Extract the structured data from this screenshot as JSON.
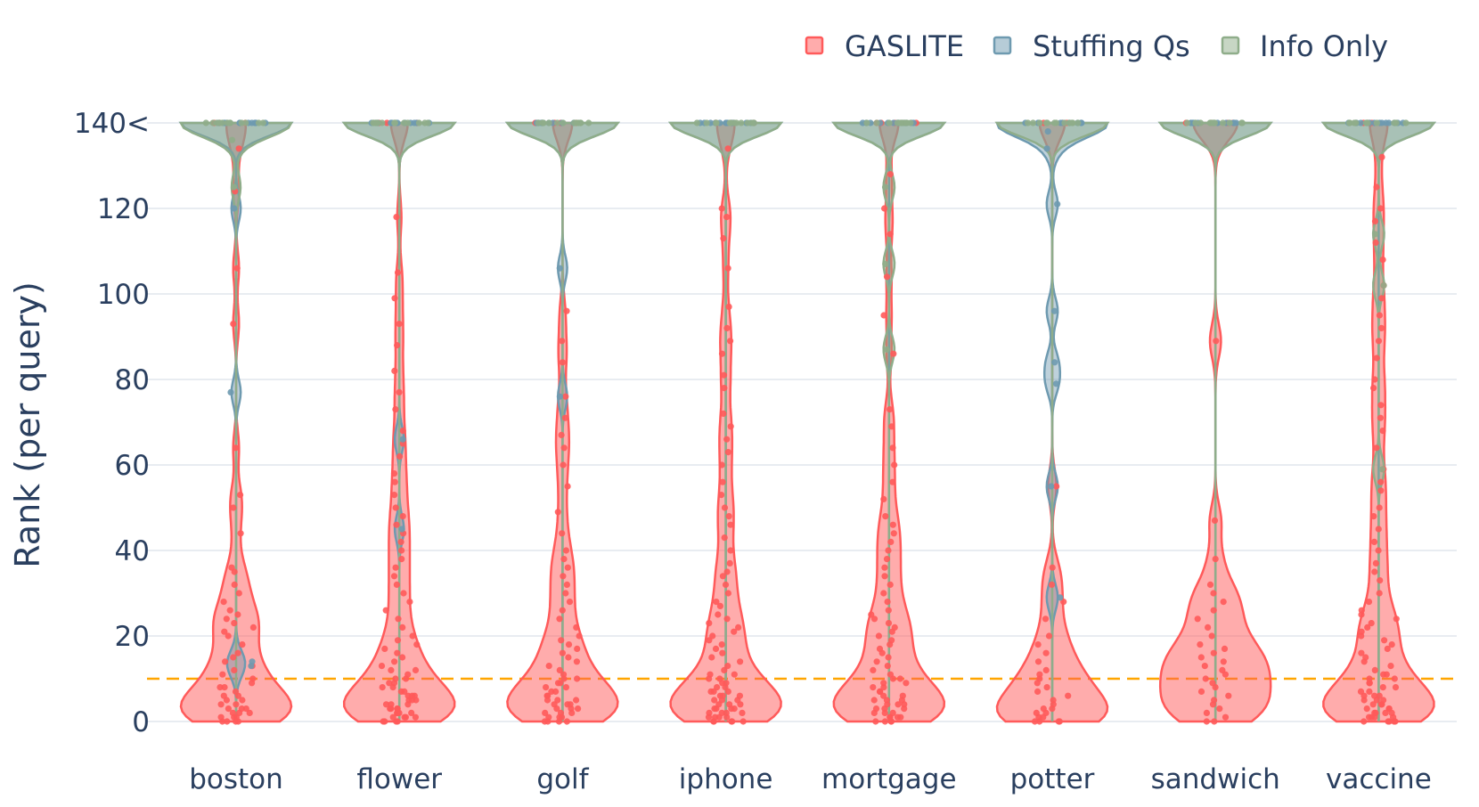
{
  "chart_data": {
    "type": "violin",
    "title": "",
    "xlabel": "",
    "ylabel": "Rank (per query)",
    "ylim": [
      0,
      140
    ],
    "yticks": [
      0,
      20,
      40,
      60,
      80,
      100,
      120,
      140
    ],
    "ytick_labels": [
      "0",
      "20",
      "40",
      "60",
      "80",
      "100",
      "120",
      "140<"
    ],
    "categories": [
      "boston",
      "flower",
      "golf",
      "iphone",
      "mortgage",
      "potter",
      "sandwich",
      "vaccine"
    ],
    "grid": true,
    "reference_line": {
      "y": 10,
      "color": "#ffa500",
      "style": "dashed"
    },
    "legend": {
      "placement": "top-right",
      "items": [
        {
          "name": "GASLITE",
          "color": "#ff5a5a"
        },
        {
          "name": "Stuffing Qs",
          "color": "#6e9ab0"
        },
        {
          "name": "Info Only",
          "color": "#8fad8a"
        }
      ]
    },
    "series": [
      {
        "name": "GASLITE",
        "color": "#ff5a5a",
        "points": {
          "boston": [
            0,
            0,
            0,
            0,
            1,
            1,
            1,
            2,
            2,
            2,
            3,
            3,
            3,
            4,
            4,
            5,
            5,
            6,
            6,
            7,
            8,
            8,
            9,
            10,
            11,
            12,
            13,
            14,
            15,
            16,
            18,
            20,
            21,
            22,
            23,
            24,
            25,
            26,
            28,
            30,
            32,
            35,
            36,
            44,
            50,
            53,
            64,
            93,
            106,
            124,
            134,
            140,
            140,
            140
          ],
          "flower": [
            0,
            0,
            0,
            0,
            1,
            1,
            1,
            1,
            2,
            2,
            2,
            2,
            3,
            3,
            3,
            3,
            4,
            4,
            4,
            5,
            5,
            5,
            6,
            6,
            6,
            7,
            7,
            8,
            8,
            9,
            9,
            10,
            10,
            11,
            12,
            12,
            13,
            14,
            15,
            16,
            17,
            18,
            19,
            20,
            22,
            24,
            26,
            28,
            30,
            32,
            34,
            36,
            38,
            40,
            42,
            44,
            46,
            48,
            50,
            53,
            56,
            58,
            62,
            65,
            68,
            73,
            77,
            82,
            88,
            93,
            99,
            105,
            118,
            140,
            140,
            140,
            140
          ],
          "golf": [
            0,
            0,
            0,
            0,
            1,
            1,
            1,
            2,
            2,
            2,
            3,
            3,
            3,
            4,
            4,
            4,
            5,
            5,
            5,
            6,
            6,
            7,
            7,
            8,
            8,
            9,
            9,
            10,
            10,
            11,
            12,
            13,
            14,
            15,
            16,
            17,
            18,
            19,
            20,
            22,
            24,
            26,
            28,
            30,
            32,
            34,
            36,
            38,
            40,
            44,
            49,
            55,
            60,
            64,
            67,
            71,
            76,
            84,
            89,
            96,
            140,
            140,
            140,
            140
          ],
          "iphone": [
            0,
            0,
            0,
            0,
            0,
            1,
            1,
            1,
            1,
            2,
            2,
            2,
            2,
            3,
            3,
            3,
            3,
            4,
            4,
            4,
            5,
            5,
            5,
            6,
            6,
            6,
            7,
            7,
            7,
            8,
            8,
            9,
            9,
            10,
            10,
            11,
            11,
            12,
            13,
            14,
            15,
            16,
            17,
            18,
            19,
            20,
            21,
            22,
            23,
            24,
            25,
            27,
            28,
            30,
            32,
            34,
            35,
            37,
            40,
            43,
            46,
            48,
            50,
            53,
            56,
            60,
            63,
            66,
            69,
            72,
            78,
            81,
            86,
            89,
            92,
            97,
            106,
            113,
            118,
            120,
            134,
            140,
            140,
            140,
            140
          ],
          "mortgage": [
            0,
            0,
            0,
            0,
            1,
            1,
            1,
            1,
            2,
            2,
            2,
            3,
            3,
            3,
            4,
            4,
            4,
            5,
            5,
            5,
            6,
            6,
            7,
            7,
            8,
            8,
            9,
            9,
            10,
            10,
            11,
            12,
            13,
            14,
            15,
            16,
            17,
            18,
            19,
            20,
            21,
            22,
            23,
            24,
            25,
            26,
            28,
            30,
            32,
            34,
            36,
            38,
            40,
            42,
            44,
            46,
            48,
            52,
            56,
            60,
            64,
            69,
            73,
            86,
            95,
            104,
            114,
            120,
            128,
            140,
            140,
            140,
            140
          ],
          "potter": [
            0,
            0,
            0,
            0,
            1,
            1,
            2,
            2,
            3,
            3,
            4,
            5,
            6,
            7,
            8,
            9,
            10,
            11,
            12,
            14,
            16,
            18,
            20,
            24,
            28,
            32,
            36,
            55,
            140,
            140,
            140
          ],
          "sandwich": [
            0,
            0,
            1,
            2,
            3,
            4,
            5,
            6,
            7,
            8,
            9,
            10,
            11,
            12,
            13,
            14,
            15,
            16,
            17,
            18,
            20,
            22,
            24,
            26,
            28,
            30,
            32,
            38,
            47,
            89,
            140,
            140,
            140,
            140
          ],
          "vaccine": [
            0,
            0,
            0,
            0,
            0,
            1,
            1,
            1,
            1,
            2,
            2,
            2,
            2,
            3,
            3,
            3,
            4,
            4,
            4,
            5,
            5,
            5,
            6,
            6,
            6,
            7,
            7,
            8,
            8,
            9,
            9,
            10,
            10,
            11,
            11,
            12,
            13,
            14,
            15,
            16,
            17,
            18,
            19,
            20,
            21,
            22,
            23,
            24,
            25,
            26,
            28,
            30,
            33,
            35,
            37,
            40,
            42,
            45,
            48,
            50,
            54,
            56,
            59,
            64,
            68,
            71,
            74,
            78,
            80,
            85,
            89,
            92,
            95,
            99,
            102,
            108,
            112,
            117,
            120,
            125,
            132,
            140,
            140,
            140,
            140
          ]
        }
      },
      {
        "name": "Stuffing Qs",
        "color": "#6e9ab0",
        "points": {
          "boston": [
            13,
            14,
            77,
            120,
            140,
            140,
            140,
            140,
            140,
            140,
            140,
            140,
            140,
            140,
            140,
            140
          ],
          "flower": [
            45,
            66,
            140,
            140,
            140,
            140,
            140,
            140,
            140,
            140,
            140,
            140,
            140,
            140
          ],
          "golf": [
            76,
            106,
            140,
            140,
            140,
            140,
            140,
            140,
            140,
            140,
            140,
            140,
            140,
            140
          ],
          "iphone": [
            140,
            140,
            140,
            140,
            140,
            140,
            140,
            140,
            140,
            140,
            140,
            140,
            140,
            140
          ],
          "mortgage": [
            140,
            140,
            140,
            140,
            140,
            140,
            140,
            140,
            140,
            140,
            140,
            140,
            140,
            140
          ],
          "potter": [
            29,
            55,
            79,
            84,
            96,
            121,
            134,
            138,
            140,
            140,
            140,
            140,
            140,
            140,
            140,
            140,
            140
          ],
          "sandwich": [
            140,
            140,
            140,
            140,
            140,
            140,
            140,
            140,
            140,
            140,
            140,
            140,
            140,
            140
          ],
          "vaccine": [
            140,
            140,
            140,
            140,
            140,
            140,
            140,
            140,
            140,
            140,
            140,
            140,
            140,
            140
          ]
        }
      },
      {
        "name": "Info Only",
        "color": "#8fad8a",
        "points": {
          "boston": [
            125,
            136,
            140,
            140,
            140,
            140,
            140,
            140,
            140,
            140,
            140,
            140,
            140,
            140
          ],
          "flower": [
            140,
            140,
            140,
            140,
            140,
            140,
            140,
            140,
            140,
            140,
            140,
            140
          ],
          "golf": [
            140,
            140,
            140,
            140,
            140,
            140,
            140,
            140,
            140,
            140,
            140,
            140
          ],
          "iphone": [
            140,
            140,
            140,
            140,
            140,
            140,
            140,
            140,
            140,
            140,
            140,
            140
          ],
          "mortgage": [
            87,
            107,
            125,
            140,
            140,
            140,
            140,
            140,
            140,
            140,
            140,
            140,
            140
          ],
          "potter": [
            140,
            140,
            140,
            140,
            140,
            140,
            140,
            140,
            140,
            140,
            140,
            140
          ],
          "sandwich": [
            140,
            140,
            140,
            140,
            140,
            140,
            140,
            140,
            140,
            140,
            140,
            140
          ],
          "vaccine": [
            59,
            102,
            114,
            140,
            140,
            140,
            140,
            140,
            140,
            140,
            140,
            140,
            140
          ]
        }
      }
    ]
  }
}
